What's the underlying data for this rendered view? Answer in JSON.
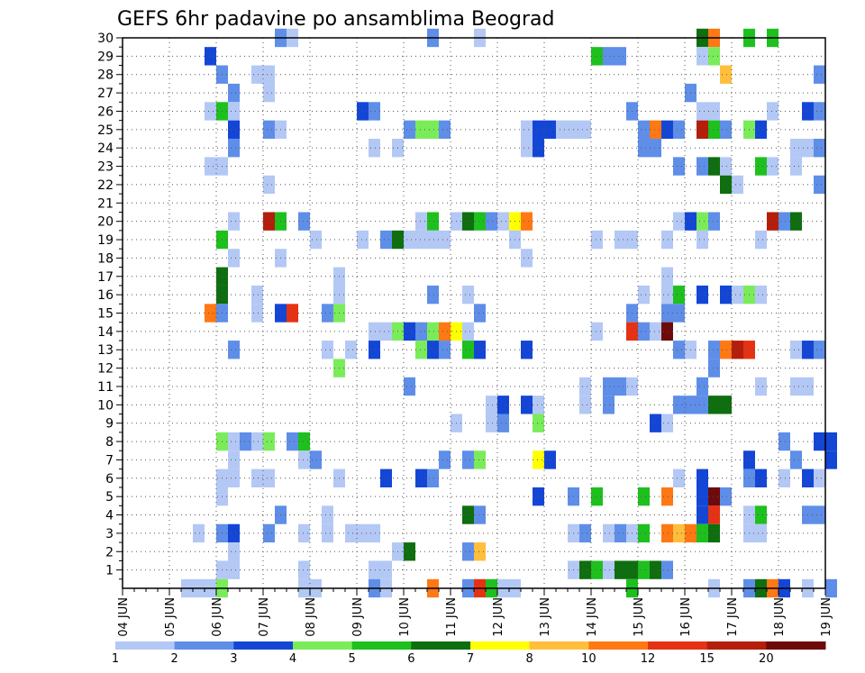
{
  "chart_data": {
    "type": "heatmap",
    "title": "GEFS 6hr padavine po ansamblima Beograd",
    "x_ticks": [
      "04 JUN",
      "05 JUN",
      "06 JUN",
      "07 JUN",
      "08 JUN",
      "09 JUN",
      "10 JUN",
      "11 JUN",
      "12 JUN",
      "13 JUN",
      "14 JUN",
      "15 JUN",
      "16 JUN",
      "17 JUN",
      "18 JUN",
      "19 JUN"
    ],
    "y_range": [
      0,
      30
    ],
    "y_ticks": [
      1,
      2,
      3,
      4,
      5,
      6,
      7,
      8,
      9,
      10,
      11,
      12,
      13,
      14,
      15,
      16,
      17,
      18,
      19,
      20,
      21,
      22,
      23,
      24,
      25,
      26,
      27,
      28,
      29,
      30
    ],
    "x_cells_per_day": 4,
    "grid": true,
    "legend_placement": "bottom",
    "color_levels": [
      1,
      2,
      3,
      4,
      5,
      6,
      7,
      8,
      10,
      12,
      15,
      20
    ],
    "level_labels": [
      "1",
      "2",
      "3",
      "4",
      "5",
      "6",
      "7",
      "8",
      "10",
      "12",
      "15",
      "20"
    ],
    "level_colors": [
      "#b4c8f5",
      "#5f8ee8",
      "#1446d6",
      "#7aec5a",
      "#1ec01e",
      "#0f6e0f",
      "#ffff00",
      "#ffbe3c",
      "#ff7814",
      "#e63214",
      "#b41e0a",
      "#6e0a0a"
    ],
    "cells": [
      [
        7.25,
        30,
        2
      ],
      [
        7.5,
        30,
        1
      ],
      [
        10.5,
        30,
        2
      ],
      [
        11.5,
        30,
        1
      ],
      [
        16.25,
        30,
        6
      ],
      [
        16.5,
        30,
        9
      ],
      [
        17.25,
        30,
        5
      ],
      [
        17.75,
        30,
        5
      ],
      [
        5.75,
        29,
        3
      ],
      [
        14.0,
        29,
        5
      ],
      [
        14.25,
        29,
        2
      ],
      [
        14.5,
        29,
        2
      ],
      [
        16.25,
        29,
        1
      ],
      [
        16.5,
        29,
        4
      ],
      [
        6.0,
        28,
        2
      ],
      [
        6.75,
        28,
        1
      ],
      [
        7.0,
        28,
        1
      ],
      [
        16.75,
        28,
        8
      ],
      [
        18.75,
        28,
        2
      ],
      [
        6.25,
        27,
        2
      ],
      [
        7.0,
        27,
        1
      ],
      [
        16.0,
        27,
        2
      ],
      [
        5.75,
        26,
        1
      ],
      [
        6.0,
        26,
        5
      ],
      [
        6.25,
        26,
        1
      ],
      [
        9.0,
        26,
        3
      ],
      [
        9.25,
        26,
        2
      ],
      [
        14.75,
        26,
        2
      ],
      [
        16.25,
        26,
        1
      ],
      [
        16.5,
        26,
        1
      ],
      [
        17.75,
        26,
        1
      ],
      [
        18.5,
        26,
        3
      ],
      [
        18.75,
        26,
        2
      ],
      [
        6.25,
        25,
        3
      ],
      [
        7.0,
        25,
        2
      ],
      [
        7.25,
        25,
        1
      ],
      [
        10.0,
        25,
        2
      ],
      [
        10.25,
        25,
        4
      ],
      [
        10.5,
        25,
        4
      ],
      [
        10.75,
        25,
        2
      ],
      [
        12.5,
        25,
        1
      ],
      [
        12.75,
        25,
        3
      ],
      [
        13.0,
        25,
        3
      ],
      [
        13.25,
        25,
        1
      ],
      [
        13.5,
        25,
        1
      ],
      [
        13.75,
        25,
        1
      ],
      [
        15.0,
        25,
        2
      ],
      [
        15.25,
        25,
        9
      ],
      [
        15.5,
        25,
        3
      ],
      [
        15.75,
        25,
        2
      ],
      [
        16.25,
        25,
        11
      ],
      [
        16.5,
        25,
        5
      ],
      [
        16.75,
        25,
        2
      ],
      [
        17.25,
        25,
        4
      ],
      [
        17.5,
        25,
        3
      ],
      [
        6.25,
        24,
        2
      ],
      [
        9.25,
        24,
        1
      ],
      [
        9.75,
        24,
        1
      ],
      [
        12.5,
        24,
        1
      ],
      [
        12.75,
        24,
        3
      ],
      [
        15.0,
        24,
        2
      ],
      [
        15.25,
        24,
        2
      ],
      [
        18.25,
        24,
        1
      ],
      [
        18.5,
        24,
        1
      ],
      [
        18.75,
        24,
        2
      ],
      [
        5.75,
        23,
        1
      ],
      [
        6.0,
        23,
        1
      ],
      [
        15.75,
        23,
        2
      ],
      [
        16.25,
        23,
        2
      ],
      [
        16.5,
        23,
        6
      ],
      [
        16.75,
        23,
        1
      ],
      [
        17.5,
        23,
        5
      ],
      [
        17.75,
        23,
        1
      ],
      [
        18.25,
        23,
        1
      ],
      [
        7.0,
        22,
        1
      ],
      [
        16.75,
        22,
        6
      ],
      [
        17.0,
        22,
        1
      ],
      [
        18.75,
        22,
        2
      ],
      [
        6.25,
        20,
        1
      ],
      [
        7.0,
        20,
        11
      ],
      [
        7.25,
        20,
        5
      ],
      [
        7.75,
        20,
        2
      ],
      [
        10.25,
        20,
        1
      ],
      [
        10.5,
        20,
        5
      ],
      [
        11.0,
        20,
        1
      ],
      [
        11.25,
        20,
        6
      ],
      [
        11.5,
        20,
        5
      ],
      [
        11.75,
        20,
        2
      ],
      [
        12.0,
        20,
        1
      ],
      [
        12.25,
        20,
        7
      ],
      [
        12.5,
        20,
        9
      ],
      [
        15.75,
        20,
        1
      ],
      [
        16.0,
        20,
        3
      ],
      [
        16.25,
        20,
        4
      ],
      [
        16.5,
        20,
        2
      ],
      [
        17.75,
        20,
        11
      ],
      [
        18.0,
        20,
        2
      ],
      [
        18.25,
        20,
        6
      ],
      [
        6.0,
        19,
        5
      ],
      [
        8.0,
        19,
        1
      ],
      [
        9.0,
        19,
        1
      ],
      [
        9.5,
        19,
        2
      ],
      [
        9.75,
        19,
        6
      ],
      [
        10.0,
        19,
        1
      ],
      [
        10.25,
        19,
        1
      ],
      [
        10.5,
        19,
        1
      ],
      [
        10.75,
        19,
        1
      ],
      [
        12.25,
        19,
        1
      ],
      [
        14.0,
        19,
        1
      ],
      [
        14.5,
        19,
        1
      ],
      [
        14.75,
        19,
        1
      ],
      [
        15.5,
        19,
        1
      ],
      [
        16.25,
        19,
        1
      ],
      [
        17.5,
        19,
        1
      ],
      [
        6.25,
        18,
        1
      ],
      [
        7.25,
        18,
        1
      ],
      [
        12.5,
        18,
        1
      ],
      [
        6.0,
        17,
        6
      ],
      [
        8.5,
        17,
        1
      ],
      [
        15.5,
        17,
        1
      ],
      [
        6.0,
        16,
        6
      ],
      [
        6.75,
        16,
        1
      ],
      [
        8.5,
        16,
        1
      ],
      [
        10.5,
        16,
        2
      ],
      [
        11.25,
        16,
        1
      ],
      [
        15.0,
        16,
        1
      ],
      [
        15.5,
        16,
        1
      ],
      [
        15.75,
        16,
        5
      ],
      [
        16.25,
        16,
        3
      ],
      [
        16.75,
        16,
        3
      ],
      [
        17.0,
        16,
        1
      ],
      [
        17.25,
        16,
        4
      ],
      [
        17.5,
        16,
        1
      ],
      [
        5.75,
        15,
        9
      ],
      [
        6.0,
        15,
        2
      ],
      [
        6.75,
        15,
        1
      ],
      [
        7.25,
        15,
        3
      ],
      [
        7.5,
        15,
        10
      ],
      [
        8.25,
        15,
        2
      ],
      [
        8.5,
        15,
        4
      ],
      [
        11.5,
        15,
        2
      ],
      [
        14.75,
        15,
        2
      ],
      [
        15.5,
        15,
        2
      ],
      [
        15.75,
        15,
        2
      ],
      [
        9.25,
        14,
        1
      ],
      [
        9.5,
        14,
        1
      ],
      [
        9.75,
        14,
        4
      ],
      [
        10.0,
        14,
        3
      ],
      [
        10.25,
        14,
        2
      ],
      [
        10.5,
        14,
        4
      ],
      [
        10.75,
        14,
        9
      ],
      [
        11.0,
        14,
        7
      ],
      [
        11.25,
        14,
        1
      ],
      [
        14.0,
        14,
        1
      ],
      [
        14.75,
        14,
        10
      ],
      [
        15.0,
        14,
        2
      ],
      [
        15.25,
        14,
        1
      ],
      [
        15.5,
        14,
        12
      ],
      [
        6.25,
        13,
        2
      ],
      [
        8.25,
        13,
        1
      ],
      [
        8.75,
        13,
        1
      ],
      [
        9.25,
        13,
        3
      ],
      [
        10.25,
        13,
        4
      ],
      [
        10.5,
        13,
        3
      ],
      [
        10.75,
        13,
        2
      ],
      [
        11.25,
        13,
        5
      ],
      [
        11.5,
        13,
        3
      ],
      [
        12.5,
        13,
        3
      ],
      [
        15.75,
        13,
        2
      ],
      [
        16.0,
        13,
        1
      ],
      [
        16.5,
        13,
        2
      ],
      [
        16.75,
        13,
        9
      ],
      [
        17.0,
        13,
        11
      ],
      [
        17.25,
        13,
        10
      ],
      [
        18.25,
        13,
        1
      ],
      [
        18.5,
        13,
        3
      ],
      [
        18.75,
        13,
        2
      ],
      [
        8.5,
        12,
        4
      ],
      [
        16.5,
        12,
        2
      ],
      [
        10.0,
        11,
        2
      ],
      [
        13.75,
        11,
        1
      ],
      [
        14.25,
        11,
        2
      ],
      [
        14.5,
        11,
        2
      ],
      [
        14.75,
        11,
        1
      ],
      [
        16.25,
        11,
        2
      ],
      [
        17.5,
        11,
        1
      ],
      [
        18.25,
        11,
        1
      ],
      [
        18.5,
        11,
        1
      ],
      [
        11.75,
        10,
        1
      ],
      [
        12.0,
        10,
        3
      ],
      [
        12.5,
        10,
        3
      ],
      [
        12.75,
        10,
        1
      ],
      [
        13.75,
        10,
        1
      ],
      [
        14.25,
        10,
        2
      ],
      [
        15.75,
        10,
        2
      ],
      [
        16.0,
        10,
        2
      ],
      [
        16.25,
        10,
        2
      ],
      [
        16.5,
        10,
        6
      ],
      [
        16.75,
        10,
        6
      ],
      [
        11.0,
        9,
        1
      ],
      [
        11.75,
        9,
        1
      ],
      [
        12.0,
        9,
        2
      ],
      [
        12.75,
        9,
        4
      ],
      [
        15.25,
        9,
        3
      ],
      [
        15.5,
        9,
        1
      ],
      [
        6.0,
        8,
        4
      ],
      [
        6.25,
        8,
        1
      ],
      [
        6.5,
        8,
        2
      ],
      [
        6.75,
        8,
        1
      ],
      [
        7.0,
        8,
        4
      ],
      [
        7.5,
        8,
        2
      ],
      [
        7.75,
        8,
        5
      ],
      [
        18.0,
        8,
        2
      ],
      [
        18.75,
        8,
        3
      ],
      [
        19.0,
        8,
        3
      ],
      [
        6.25,
        7,
        1
      ],
      [
        7.75,
        7,
        1
      ],
      [
        8.0,
        7,
        2
      ],
      [
        10.75,
        7,
        2
      ],
      [
        11.25,
        7,
        2
      ],
      [
        11.5,
        7,
        4
      ],
      [
        12.75,
        7,
        7
      ],
      [
        13.0,
        7,
        3
      ],
      [
        17.25,
        7,
        3
      ],
      [
        18.25,
        7,
        2
      ],
      [
        19.0,
        7,
        3
      ],
      [
        6.0,
        6,
        1
      ],
      [
        6.25,
        6,
        1
      ],
      [
        6.75,
        6,
        1
      ],
      [
        7.0,
        6,
        1
      ],
      [
        8.5,
        6,
        1
      ],
      [
        9.5,
        6,
        3
      ],
      [
        10.25,
        6,
        3
      ],
      [
        10.5,
        6,
        2
      ],
      [
        15.75,
        6,
        1
      ],
      [
        16.25,
        6,
        3
      ],
      [
        17.25,
        6,
        2
      ],
      [
        17.5,
        6,
        3
      ],
      [
        18.0,
        6,
        1
      ],
      [
        18.5,
        6,
        3
      ],
      [
        18.75,
        6,
        1
      ],
      [
        6.0,
        5,
        1
      ],
      [
        12.75,
        5,
        3
      ],
      [
        13.5,
        5,
        2
      ],
      [
        14.0,
        5,
        5
      ],
      [
        15.0,
        5,
        5
      ],
      [
        15.5,
        5,
        9
      ],
      [
        16.25,
        5,
        3
      ],
      [
        16.5,
        5,
        12
      ],
      [
        16.75,
        5,
        2
      ],
      [
        7.25,
        4,
        2
      ],
      [
        8.25,
        4,
        1
      ],
      [
        11.25,
        4,
        6
      ],
      [
        11.5,
        4,
        2
      ],
      [
        16.25,
        4,
        3
      ],
      [
        16.5,
        4,
        10
      ],
      [
        17.25,
        4,
        1
      ],
      [
        17.5,
        4,
        5
      ],
      [
        18.5,
        4,
        2
      ],
      [
        18.75,
        4,
        2
      ],
      [
        5.5,
        3,
        1
      ],
      [
        6.0,
        3,
        2
      ],
      [
        6.25,
        3,
        3
      ],
      [
        7.0,
        3,
        2
      ],
      [
        7.75,
        3,
        1
      ],
      [
        8.25,
        3,
        1
      ],
      [
        8.75,
        3,
        1
      ],
      [
        9.0,
        3,
        1
      ],
      [
        9.25,
        3,
        1
      ],
      [
        13.5,
        3,
        1
      ],
      [
        13.75,
        3,
        2
      ],
      [
        14.25,
        3,
        1
      ],
      [
        14.5,
        3,
        2
      ],
      [
        14.75,
        3,
        1
      ],
      [
        15.0,
        3,
        5
      ],
      [
        15.5,
        3,
        9
      ],
      [
        15.75,
        3,
        8
      ],
      [
        16.0,
        3,
        9
      ],
      [
        16.25,
        3,
        5
      ],
      [
        16.5,
        3,
        6
      ],
      [
        17.25,
        3,
        1
      ],
      [
        17.5,
        3,
        1
      ],
      [
        6.25,
        2,
        1
      ],
      [
        9.75,
        2,
        1
      ],
      [
        10.0,
        2,
        6
      ],
      [
        11.25,
        2,
        2
      ],
      [
        11.5,
        2,
        8
      ],
      [
        6.0,
        1,
        1
      ],
      [
        6.25,
        1,
        1
      ],
      [
        7.75,
        1,
        1
      ],
      [
        9.25,
        1,
        1
      ],
      [
        9.5,
        1,
        1
      ],
      [
        13.5,
        1,
        1
      ],
      [
        13.75,
        1,
        6
      ],
      [
        14.0,
        1,
        5
      ],
      [
        14.25,
        1,
        1
      ],
      [
        14.5,
        1,
        6
      ],
      [
        14.75,
        1,
        6
      ],
      [
        15.0,
        1,
        5
      ],
      [
        15.25,
        1,
        6
      ],
      [
        15.5,
        1,
        2
      ],
      [
        5.25,
        0,
        1
      ],
      [
        5.5,
        0,
        1
      ],
      [
        5.75,
        0,
        1
      ],
      [
        6.0,
        0,
        4
      ],
      [
        7.75,
        0,
        1
      ],
      [
        8.0,
        0,
        1
      ],
      [
        9.25,
        0,
        2
      ],
      [
        9.5,
        0,
        1
      ],
      [
        10.5,
        0,
        9
      ],
      [
        11.25,
        0,
        2
      ],
      [
        11.5,
        0,
        10
      ],
      [
        11.75,
        0,
        5
      ],
      [
        12.0,
        0,
        1
      ],
      [
        12.25,
        0,
        1
      ],
      [
        14.75,
        0,
        5
      ],
      [
        16.5,
        0,
        1
      ],
      [
        17.25,
        0,
        2
      ],
      [
        17.5,
        0,
        6
      ],
      [
        17.75,
        0,
        9
      ],
      [
        18.0,
        0,
        3
      ],
      [
        18.5,
        0,
        1
      ],
      [
        19.0,
        0,
        2
      ]
    ]
  }
}
